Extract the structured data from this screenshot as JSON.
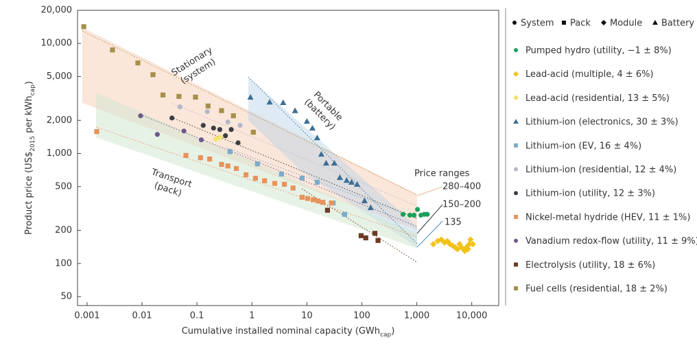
{
  "chart_data": {
    "type": "scatter",
    "x_label": [
      "Cumulative installed nominal capacity (GWh",
      "cap",
      ")"
    ],
    "y_label": [
      "Product price (US$",
      "2015",
      " per kWh",
      "cap",
      ")"
    ],
    "log_x": true,
    "log_y": true,
    "xlim": [
      0.00067,
      31000
    ],
    "ylim": [
      41.5,
      20000
    ],
    "xticks": [
      0.001,
      0.01,
      0.1,
      1,
      10,
      100,
      {
        "value": 1000,
        "label": "1,000"
      },
      {
        "value": 10000,
        "label": "10,000"
      }
    ],
    "yticks": [
      50,
      100,
      200,
      500,
      {
        "value": 1000,
        "label": "1,000"
      },
      {
        "value": 2000,
        "label": "2,000"
      },
      {
        "value": 5000,
        "label": "5,000"
      },
      {
        "value": 10000,
        "label": "10,000"
      },
      {
        "value": 20000,
        "label": "20,000"
      }
    ],
    "marker_legend": [
      {
        "label": "System",
        "marker": "circle"
      },
      {
        "label": "Pack",
        "marker": "square"
      },
      {
        "label": "Module",
        "marker": "diamond"
      },
      {
        "label": "Battery",
        "marker": "triangle"
      }
    ],
    "annotations": [
      {
        "lines": [
          "Stationary",
          "(system)"
        ],
        "color": "#edc3a4"
      },
      {
        "lines": [
          "Portable",
          "(battery)"
        ],
        "color": "#4f7fa8"
      },
      {
        "lines": [
          "Transport",
          "(pack)"
        ],
        "color": "#555"
      },
      {
        "lines": [
          "Price ranges"
        ],
        "color": "#222"
      },
      {
        "lines": [
          "280–400"
        ],
        "color": "#e6b892"
      },
      {
        "lines": [
          "150–200"
        ],
        "color": "#333"
      },
      {
        "lines": [
          "135"
        ],
        "color": "#4f8ac0"
      }
    ],
    "series": [
      {
        "name": "Pumped hydro (utility, −1 ± 8%)",
        "color": "#1aa05a",
        "marker": "circle",
        "x": [
          562,
          750,
          891,
          1030,
          1190,
          1370,
          1550
        ],
        "values": [
          280,
          275,
          275,
          310,
          275,
          280,
          280
        ]
      },
      {
        "name": "Lead-acid (multiple, 4 ± 6%)",
        "color": "#f2c21a",
        "marker": "diamond",
        "x": [
          2000,
          2400,
          2800,
          3200,
          3600,
          4000,
          4500,
          5000,
          5500,
          6000,
          6500,
          7000,
          7500,
          8000,
          8500,
          9000,
          9500,
          10500
        ],
        "values": [
          150,
          160,
          165,
          155,
          160,
          150,
          145,
          140,
          135,
          150,
          140,
          135,
          130,
          140,
          135,
          150,
          165,
          150
        ]
      },
      {
        "name": "Lead-acid (residential, 13 ± 5%)",
        "color": "#f2e46a",
        "marker": "diamond",
        "x": [
          0.22,
          0.26,
          0.33
        ],
        "values": [
          1350,
          1400,
          1450
        ]
      },
      {
        "name": "Lithium-ion (electronics, 30 ± 3%)",
        "color": "#3d6f95",
        "marker": "triangle",
        "x": [
          0.94,
          2.1,
          3.7,
          6.1,
          10,
          12.6,
          15.4,
          18.3,
          22.4,
          31.6,
          39.8,
          53,
          65,
          82,
          112,
          145
        ],
        "values": [
          3245,
          2930,
          2900,
          2450,
          1960,
          1700,
          1390,
          985,
          818,
          818,
          605,
          570,
          548,
          525,
          372,
          322
        ]
      },
      {
        "name": "Lithium-ion (EV, 16 ± 4%)",
        "color": "#7aaccc",
        "marker": "square",
        "x": [
          0.4,
          1.26,
          3.45,
          8.2,
          15.4,
          30,
          48.7
        ],
        "values": [
          1040,
          806,
          650,
          597,
          548,
          355,
          280
        ]
      },
      {
        "name": "Lithium-ion (residential, 12 ± 4%)",
        "color": "#b3b7c9",
        "marker": "circle",
        "x": [
          0.049,
          0.154,
          0.365,
          0.61
        ],
        "values": [
          2650,
          2400,
          1930,
          1800
        ]
      },
      {
        "name": "Lithium-ion (utility, 12 ± 3%)",
        "color": "#3a3f45",
        "marker": "circle",
        "x": [
          0.035,
          0.13,
          0.2,
          0.26,
          0.33,
          0.42,
          0.56
        ],
        "values": [
          2100,
          1800,
          1700,
          1650,
          1450,
          1650,
          1250
        ]
      },
      {
        "name": "Nickel-metal hydride (HEV, 11 ± 1%)",
        "color": "#e8935a",
        "marker": "square",
        "x": [
          0.0015,
          0.063,
          0.116,
          0.17,
          0.28,
          0.365,
          0.52,
          0.78,
          1.16,
          1.7,
          2.6,
          3.9,
          5.6,
          8.2,
          10.3,
          13,
          16,
          19.5,
          28
        ],
        "values": [
          1580,
          960,
          915,
          890,
          795,
          770,
          730,
          640,
          595,
          565,
          535,
          525,
          485,
          400,
          390,
          380,
          370,
          360,
          355
        ]
      },
      {
        "name": "Vanadium redox-flow (utility, 11 ± 9%)",
        "color": "#6e5a8a",
        "marker": "circle",
        "x": [
          0.0094,
          0.019,
          0.058,
          0.12
        ],
        "values": [
          2200,
          1490,
          1600,
          1330
        ]
      },
      {
        "name": "Electrolysis (utility, 18 ± 6%)",
        "color": "#6b3a22",
        "marker": "square",
        "x": [
          23.7,
          97,
          118,
          173,
          197
        ],
        "values": [
          305,
          179,
          171,
          188,
          162
        ]
      },
      {
        "name": "Fuel cells (residential, 18 ± 2%)",
        "color": "#a6904a",
        "marker": "square",
        "x": [
          0.00087,
          0.0029,
          0.0084,
          0.0158,
          0.024,
          0.047,
          0.094,
          0.159,
          0.28,
          0.46,
          1.06
        ],
        "values": [
          14200,
          8720,
          6650,
          5200,
          3400,
          3300,
          3250,
          2700,
          2450,
          2200,
          1560
        ]
      }
    ]
  }
}
